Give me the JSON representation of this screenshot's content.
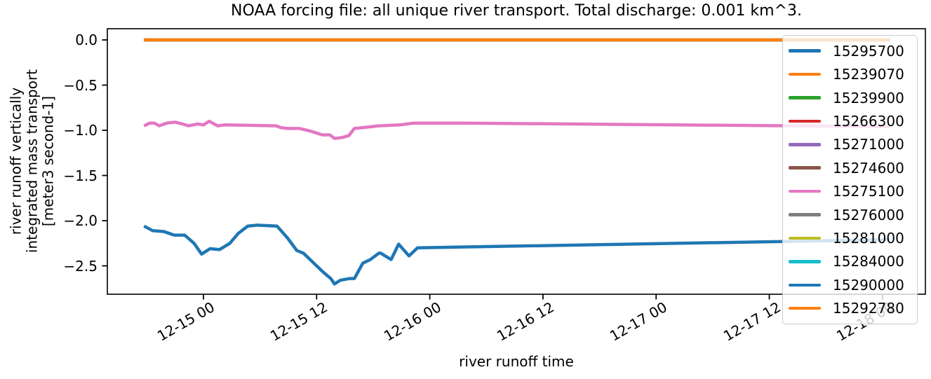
{
  "figure": {
    "title": "NOAA forcing file: all unique river transport. Total discharge: 0.001 km^3."
  },
  "axes": {
    "xlabel": "river runoff time",
    "ylabel_lines": [
      "river runoff vertically",
      "integrated mass transport",
      "[meter3 second-1]"
    ],
    "xticks": [
      {
        "label": "12-15 00",
        "hours": 0
      },
      {
        "label": "12-15 12",
        "hours": 12
      },
      {
        "label": "12-16 00",
        "hours": 24
      },
      {
        "label": "12-16 12",
        "hours": 36
      },
      {
        "label": "12-17 00",
        "hours": 48
      },
      {
        "label": "12-17 12",
        "hours": 60
      },
      {
        "label": "12-18 00",
        "hours": 72
      }
    ],
    "yticks": [
      {
        "label": "0.0",
        "value": 0.0
      },
      {
        "label": "−0.5",
        "value": -0.5
      },
      {
        "label": "−1.0",
        "value": -1.0
      },
      {
        "label": "−1.5",
        "value": -1.5
      },
      {
        "label": "−2.0",
        "value": -2.0
      },
      {
        "label": "−2.5",
        "value": -2.5
      }
    ]
  },
  "chart_data": {
    "type": "line",
    "title": "NOAA forcing file: all unique river transport. Total discharge: 0.001 km^3.",
    "xlabel": "river runoff time",
    "ylabel": "river runoff vertically integrated mass transport [meter3 second-1]",
    "x_unit": "hours relative to 12-15 00:00 (date-time ticks 12-14 through 12-18)",
    "xlim": [
      -10.2,
      76.6
    ],
    "ylim": [
      -2.81,
      0.12
    ],
    "grid": false,
    "legend_position": "upper right",
    "note": "All series except 15275100 and 15290000 lie flat at ~0 m3 s-1 and overlap; the orange 15292780 line is drawn last on top of that zero stack.",
    "series": [
      {
        "name": "15295700",
        "color": "#1f77b4",
        "points": [
          [
            -6.3,
            0.0
          ],
          [
            72.8,
            0.0
          ]
        ]
      },
      {
        "name": "15239070",
        "color": "#ff7f0e",
        "points": [
          [
            -6.3,
            0.0
          ],
          [
            72.8,
            0.0
          ]
        ]
      },
      {
        "name": "15239900",
        "color": "#2ca02c",
        "points": [
          [
            -6.3,
            0.0
          ],
          [
            72.8,
            0.0
          ]
        ]
      },
      {
        "name": "15266300",
        "color": "#d62728",
        "points": [
          [
            -6.3,
            0.0
          ],
          [
            72.8,
            0.0
          ]
        ]
      },
      {
        "name": "15271000",
        "color": "#9467bd",
        "points": [
          [
            -6.3,
            0.0
          ],
          [
            72.8,
            0.0
          ]
        ]
      },
      {
        "name": "15274600",
        "color": "#8c564b",
        "points": [
          [
            -6.3,
            0.0
          ],
          [
            72.8,
            0.0
          ]
        ]
      },
      {
        "name": "15275100",
        "color": "#e377c2",
        "points": [
          [
            -6.3,
            -0.95
          ],
          [
            -5.7,
            -0.92
          ],
          [
            -5.2,
            -0.92
          ],
          [
            -4.7,
            -0.95
          ],
          [
            -3.9,
            -0.92
          ],
          [
            -3.0,
            -0.91
          ],
          [
            -2.2,
            -0.93
          ],
          [
            -1.6,
            -0.95
          ],
          [
            -0.6,
            -0.93
          ],
          [
            0.0,
            -0.94
          ],
          [
            0.6,
            -0.9
          ],
          [
            1.5,
            -0.95
          ],
          [
            2.2,
            -0.94
          ],
          [
            7.7,
            -0.95
          ],
          [
            8.2,
            -0.97
          ],
          [
            8.9,
            -0.98
          ],
          [
            10.2,
            -0.98
          ],
          [
            11.4,
            -1.01
          ],
          [
            12.6,
            -1.05
          ],
          [
            13.4,
            -1.05
          ],
          [
            13.9,
            -1.09
          ],
          [
            14.7,
            -1.08
          ],
          [
            15.4,
            -1.06
          ],
          [
            16.0,
            -0.98
          ],
          [
            16.9,
            -0.97
          ],
          [
            18.6,
            -0.95
          ],
          [
            20.8,
            -0.94
          ],
          [
            22.3,
            -0.92
          ],
          [
            27.5,
            -0.92
          ],
          [
            72.8,
            -0.96
          ]
        ]
      },
      {
        "name": "15276000",
        "color": "#7f7f7f",
        "points": [
          [
            -6.3,
            0.0
          ],
          [
            72.8,
            0.0
          ]
        ]
      },
      {
        "name": "15281000",
        "color": "#bcbd22",
        "points": [
          [
            -6.3,
            0.0
          ],
          [
            72.8,
            0.0
          ]
        ]
      },
      {
        "name": "15284000",
        "color": "#17becf",
        "points": [
          [
            -6.3,
            0.0
          ],
          [
            72.8,
            0.0
          ]
        ]
      },
      {
        "name": "15290000",
        "color": "#1f77b4",
        "points": [
          [
            -6.3,
            -2.06
          ],
          [
            -5.4,
            -2.11
          ],
          [
            -4.2,
            -2.12
          ],
          [
            -3.1,
            -2.16
          ],
          [
            -2.0,
            -2.16
          ],
          [
            -1.0,
            -2.25
          ],
          [
            -0.2,
            -2.37
          ],
          [
            0.7,
            -2.31
          ],
          [
            1.7,
            -2.32
          ],
          [
            2.8,
            -2.25
          ],
          [
            3.7,
            -2.14
          ],
          [
            4.7,
            -2.06
          ],
          [
            5.7,
            -2.05
          ],
          [
            7.8,
            -2.06
          ],
          [
            8.9,
            -2.19
          ],
          [
            9.9,
            -2.33
          ],
          [
            10.6,
            -2.36
          ],
          [
            11.7,
            -2.47
          ],
          [
            12.7,
            -2.57
          ],
          [
            13.5,
            -2.64
          ],
          [
            13.9,
            -2.7
          ],
          [
            14.5,
            -2.66
          ],
          [
            15.5,
            -2.64
          ],
          [
            16.0,
            -2.64
          ],
          [
            16.9,
            -2.47
          ],
          [
            17.7,
            -2.43
          ],
          [
            18.6,
            -2.36
          ],
          [
            18.8,
            -2.36
          ],
          [
            19.9,
            -2.43
          ],
          [
            20.7,
            -2.26
          ],
          [
            21.8,
            -2.39
          ],
          [
            22.7,
            -2.3
          ],
          [
            72.8,
            -2.21
          ]
        ]
      },
      {
        "name": "15292780",
        "color": "#ff7f0e",
        "points": [
          [
            -6.3,
            0.0
          ],
          [
            72.8,
            0.0
          ]
        ]
      }
    ]
  }
}
